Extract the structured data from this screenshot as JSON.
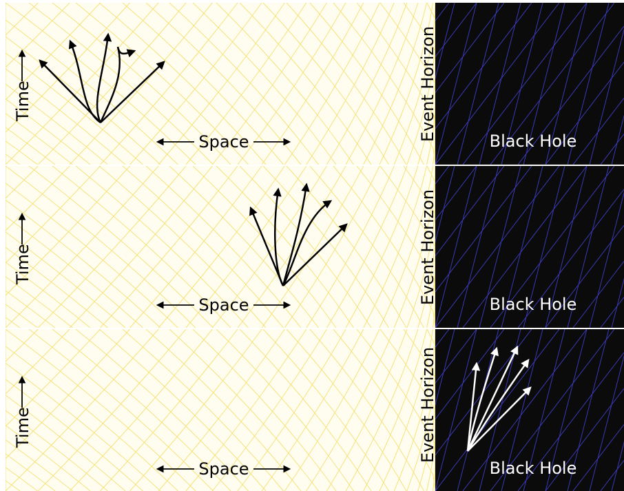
{
  "panels": [
    {
      "time_label": "Time",
      "space_label": "Space",
      "horizon_label": "Event Horizon",
      "black_hole_label": "Black Hole"
    },
    {
      "time_label": "Time",
      "space_label": "Space",
      "horizon_label": "Event Horizon",
      "black_hole_label": "Black Hole"
    },
    {
      "time_label": "Time",
      "space_label": "Space",
      "horizon_label": "Event Horizon",
      "black_hole_label": "Black Hole"
    }
  ],
  "colors": {
    "spacetime_background": "#fffdf0",
    "outside_grid": "#f5e27a",
    "black_hole": "#0b0b0b",
    "inside_grid": "#3a3ab8",
    "outside_arrows": "#000000",
    "inside_arrows": "#ffffff",
    "panel_divider": "#ffffff"
  }
}
